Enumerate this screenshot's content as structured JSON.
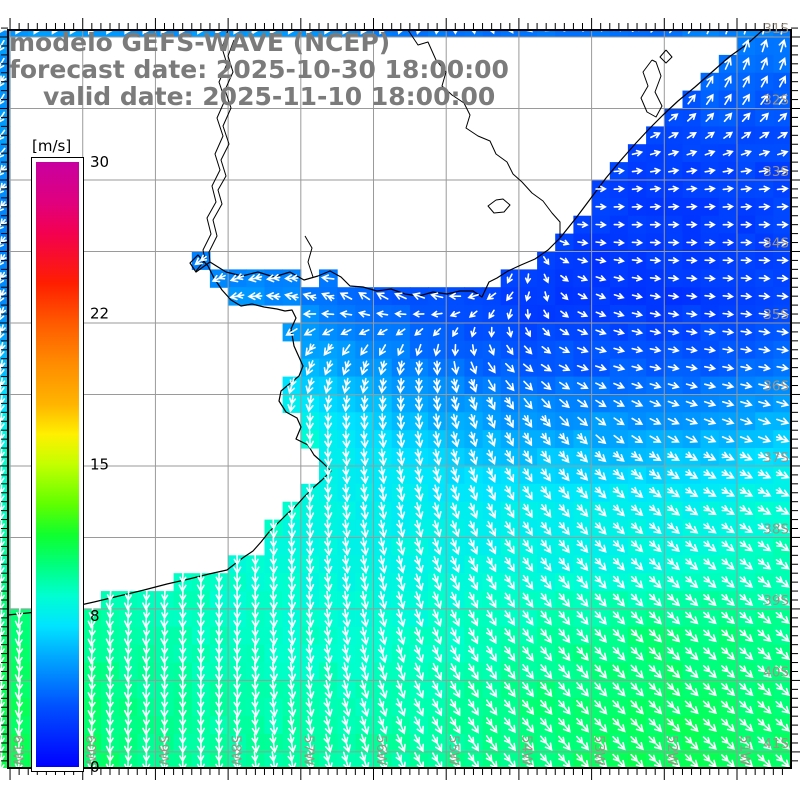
{
  "header": {
    "model_title": "modelo GEFS-WAVE (NCEP)",
    "forecast_date_line": "forecast date: 2025-10-30 18:00:00",
    "valid_date_line": "valid date: 2025-11-10 18:00:00"
  },
  "chart_data": {
    "type": "heatmap",
    "title": "modelo GEFS-WAVE (NCEP)",
    "subtitle_lines": [
      "forecast date: 2025-10-30 18:00:00",
      "valid date: 2025-11-10 18:00:00"
    ],
    "units": "m/s",
    "legend_position": "left",
    "grid": true,
    "colorbar": {
      "label": "[m/s]",
      "min": 0,
      "max": 30,
      "tick_labels": [
        "0",
        "8",
        "15",
        "22",
        "30"
      ],
      "tick_values": [
        0,
        7.5,
        15,
        22.5,
        30
      ],
      "stops": [
        [
          0,
          "#0000ff"
        ],
        [
          3,
          "#0050ff"
        ],
        [
          5.5,
          "#00aaff"
        ],
        [
          7,
          "#00e4ff"
        ],
        [
          8.5,
          "#00ffd0"
        ],
        [
          10,
          "#00ff7e"
        ],
        [
          11.5,
          "#0fff2f"
        ],
        [
          13,
          "#5eff00"
        ],
        [
          15,
          "#c3ff00"
        ],
        [
          16.5,
          "#fff000"
        ],
        [
          18,
          "#ffb400"
        ],
        [
          20,
          "#ff8c00"
        ],
        [
          22,
          "#ff5a00"
        ],
        [
          24,
          "#ff1e00"
        ],
        [
          26.5,
          "#f30050"
        ],
        [
          28,
          "#e0007e"
        ],
        [
          30,
          "#c800a0"
        ]
      ]
    },
    "layout": {
      "plot": [
        8,
        30,
        791,
        768
      ],
      "lon_left": -61.028,
      "lon_right": -50.257,
      "lat_top": -30.902,
      "lat_bottom": -41.225,
      "cell_deg": 0.25,
      "grid_color": "#9a9a9a",
      "label_color": "#9c9285",
      "title_color": "#7b7b7b",
      "arrow_color": "#ffffff",
      "coast_color": "#000000"
    },
    "lon_labels": [
      "61W",
      "60W",
      "59W",
      "58W",
      "57W",
      "56W",
      "55W",
      "54W",
      "53W",
      "52W",
      "51W"
    ],
    "lat_labels": [
      "31S",
      "32S",
      "33S",
      "34S",
      "35S",
      "36S",
      "37S",
      "38S",
      "39S",
      "40S",
      "41S"
    ],
    "field": {
      "comment": "wave/wind speed (m/s), arrow direction (deg, 0=E, 90=S) and relative arrow size on a 12x12 grid spanning the plot area",
      "wave_height_ms": [
        [
          5,
          5,
          5,
          5,
          5,
          4.5,
          4,
          4,
          4,
          4,
          4.5,
          4.2
        ],
        [
          5,
          5,
          5,
          5,
          4.5,
          4,
          3.5,
          3.2,
          3,
          3,
          3.5,
          3.2
        ],
        [
          5,
          5,
          5,
          4.5,
          4.2,
          4,
          3.5,
          3,
          2.6,
          2.4,
          2.4,
          2.6
        ],
        [
          4.5,
          4.5,
          4.5,
          4.2,
          4,
          3.8,
          3.2,
          2.6,
          2.2,
          2.1,
          2.2,
          2.4
        ],
        [
          4.5,
          4.5,
          4.8,
          5,
          4.5,
          3.6,
          2.8,
          2.2,
          2,
          2,
          2.2,
          2.6
        ],
        [
          6,
          6,
          6.5,
          7,
          6,
          5,
          4,
          3.4,
          3.2,
          3.2,
          3.4,
          3.8
        ],
        [
          8,
          8,
          8.5,
          10.2,
          8.5,
          7,
          6,
          5.5,
          5.3,
          5.3,
          5.5,
          6.2
        ],
        [
          9,
          9,
          9.3,
          9.6,
          8.3,
          7.6,
          7.4,
          7.4,
          7.4,
          7.5,
          7.8,
          8.3
        ],
        [
          9.5,
          9.2,
          8.8,
          8.5,
          8.2,
          8,
          8,
          8,
          8,
          8.2,
          8.6,
          9.2
        ],
        [
          10.5,
          9.8,
          9.2,
          8.8,
          8.6,
          8.5,
          8.6,
          9,
          9.6,
          10,
          10,
          9.8
        ],
        [
          10.6,
          10.2,
          9.6,
          9.2,
          9,
          9,
          9.2,
          9.8,
          10.2,
          10.5,
          10.4,
          10
        ],
        [
          10.8,
          10.6,
          9.8,
          9.5,
          9.4,
          9.4,
          9.5,
          9.9,
          10.4,
          10.8,
          10.8,
          10.4
        ]
      ],
      "arrow_dir_deg": [
        [
          120,
          120,
          120,
          120,
          120,
          120,
          100,
          60,
          0,
          -40,
          -70,
          -80
        ],
        [
          120,
          120,
          120,
          120,
          120,
          110,
          80,
          30,
          -10,
          -40,
          -60,
          -55
        ],
        [
          130,
          130,
          130,
          130,
          120,
          110,
          60,
          20,
          0,
          -10,
          -10,
          -8
        ],
        [
          130,
          130,
          132,
          135,
          138,
          150,
          160,
          90,
          5,
          0,
          0,
          0
        ],
        [
          115,
          120,
          135,
          165,
          195,
          215,
          195,
          130,
          30,
          10,
          5,
          5
        ],
        [
          100,
          100,
          100,
          105,
          115,
          110,
          90,
          45,
          20,
          12,
          10,
          10
        ],
        [
          95,
          95,
          95,
          95,
          90,
          85,
          80,
          65,
          45,
          30,
          22,
          20
        ],
        [
          95,
          95,
          95,
          92,
          88,
          82,
          75,
          62,
          48,
          38,
          30,
          26
        ],
        [
          95,
          95,
          93,
          90,
          87,
          80,
          70,
          58,
          50,
          44,
          40,
          36
        ],
        [
          95,
          95,
          93,
          90,
          85,
          78,
          68,
          57,
          50,
          46,
          42,
          40
        ],
        [
          95,
          95,
          92,
          88,
          82,
          73,
          63,
          54,
          49,
          46,
          43,
          41
        ],
        [
          95,
          94,
          91,
          87,
          80,
          71,
          61,
          53,
          49,
          46,
          44,
          42
        ]
      ],
      "arrow_mag": [
        [
          0.5,
          0.5,
          0.5,
          0.5,
          0.5,
          0.5,
          0.4,
          0.4,
          0.4,
          0.45,
          0.5,
          0.5
        ],
        [
          0.5,
          0.5,
          0.5,
          0.5,
          0.5,
          0.45,
          0.4,
          0.35,
          0.35,
          0.4,
          0.45,
          0.45
        ],
        [
          0.5,
          0.5,
          0.5,
          0.5,
          0.5,
          0.45,
          0.4,
          0.35,
          0.3,
          0.3,
          0.3,
          0.35
        ],
        [
          0.55,
          0.55,
          0.55,
          0.6,
          0.6,
          0.5,
          0.4,
          0.3,
          0.3,
          0.3,
          0.3,
          0.35
        ],
        [
          0.6,
          0.6,
          0.6,
          0.6,
          0.55,
          0.5,
          0.45,
          0.35,
          0.3,
          0.3,
          0.3,
          0.35
        ],
        [
          0.7,
          0.7,
          0.7,
          0.75,
          0.7,
          0.6,
          0.55,
          0.45,
          0.4,
          0.35,
          0.35,
          0.4
        ],
        [
          0.8,
          0.8,
          0.8,
          0.85,
          0.8,
          0.75,
          0.7,
          0.6,
          0.5,
          0.45,
          0.45,
          0.5
        ],
        [
          0.9,
          0.9,
          0.9,
          0.9,
          0.85,
          0.8,
          0.75,
          0.7,
          0.65,
          0.6,
          0.6,
          0.6
        ],
        [
          0.95,
          0.95,
          0.9,
          0.9,
          0.85,
          0.85,
          0.8,
          0.75,
          0.7,
          0.7,
          0.7,
          0.7
        ],
        [
          1,
          1,
          0.95,
          0.9,
          0.9,
          0.85,
          0.85,
          0.8,
          0.8,
          0.8,
          0.8,
          0.8
        ],
        [
          1,
          1,
          0.95,
          0.95,
          0.9,
          0.9,
          0.9,
          0.85,
          0.85,
          0.85,
          0.85,
          0.85
        ],
        [
          1,
          1,
          0.95,
          0.95,
          0.9,
          0.9,
          0.9,
          0.9,
          0.85,
          0.85,
          0.85,
          0.85
        ]
      ]
    },
    "geo": {
      "coastline": [
        [
          763,
          30
        ],
        [
          746,
          45
        ],
        [
          729,
          57
        ],
        [
          712,
          72
        ],
        [
          695,
          87
        ],
        [
          678,
          101
        ],
        [
          663,
          115
        ],
        [
          650,
          128
        ],
        [
          636,
          143
        ],
        [
          621,
          160
        ],
        [
          606,
          178
        ],
        [
          591,
          198
        ],
        [
          576,
          218
        ],
        [
          560,
          238
        ],
        [
          548,
          250
        ],
        [
          535,
          259
        ],
        [
          521,
          265
        ],
        [
          508,
          271
        ],
        [
          497,
          278
        ],
        [
          489,
          282
        ],
        [
          482,
          297
        ],
        [
          473,
          291
        ],
        [
          460,
          291
        ],
        [
          447,
          294
        ],
        [
          433,
          292
        ],
        [
          419,
          296
        ],
        [
          405,
          294
        ],
        [
          391,
          289
        ],
        [
          377,
          291
        ],
        [
          363,
          287
        ],
        [
          350,
          286
        ],
        [
          341,
          277
        ],
        [
          330,
          271
        ],
        [
          318,
          276
        ],
        [
          304,
          280
        ],
        [
          290,
          272
        ],
        [
          274,
          277
        ],
        [
          258,
          272
        ],
        [
          242,
          276
        ],
        [
          226,
          272
        ],
        [
          210,
          262
        ],
        [
          196,
          272
        ],
        [
          190,
          263
        ],
        [
          198,
          255
        ],
        [
          208,
          266
        ],
        [
          214,
          278
        ],
        [
          222,
          290
        ],
        [
          231,
          300
        ],
        [
          241,
          306
        ],
        [
          252,
          304
        ],
        [
          264,
          307
        ],
        [
          277,
          309
        ],
        [
          285,
          311
        ],
        [
          292,
          310
        ],
        [
          296,
          318
        ],
        [
          291,
          329
        ],
        [
          294,
          346
        ],
        [
          303,
          366
        ],
        [
          299,
          376
        ],
        [
          281,
          391
        ],
        [
          279,
          401
        ],
        [
          286,
          412
        ],
        [
          297,
          418
        ],
        [
          301,
          427
        ],
        [
          296,
          439
        ],
        [
          308,
          445
        ],
        [
          314,
          455
        ],
        [
          323,
          463
        ],
        [
          331,
          471
        ],
        [
          322,
          480
        ],
        [
          314,
          487
        ],
        [
          304,
          497
        ],
        [
          295,
          507
        ],
        [
          287,
          514
        ],
        [
          279,
          522
        ],
        [
          269,
          532
        ],
        [
          261,
          542
        ],
        [
          253,
          551
        ],
        [
          244,
          557
        ],
        [
          236,
          563
        ],
        [
          227,
          570
        ],
        [
          209,
          574
        ],
        [
          189,
          579
        ],
        [
          167,
          584
        ],
        [
          144,
          590
        ],
        [
          119,
          596
        ],
        [
          94,
          602
        ],
        [
          67,
          608
        ],
        [
          37,
          612
        ],
        [
          8,
          615
        ]
      ],
      "rivers": [
        [
          [
            228,
            30
          ],
          [
            222,
            48
          ],
          [
            227,
            64
          ],
          [
            219,
            82
          ],
          [
            225,
            100
          ],
          [
            217,
            118
          ],
          [
            223,
            136
          ],
          [
            215,
            154
          ],
          [
            220,
            170
          ],
          [
            212,
            186
          ],
          [
            216,
            202
          ],
          [
            207,
            218
          ],
          [
            211,
            234
          ],
          [
            203,
            250
          ],
          [
            205,
            260
          ],
          [
            196,
            271
          ]
        ],
        [
          [
            234,
            40
          ],
          [
            228,
            56
          ],
          [
            233,
            72
          ],
          [
            225,
            90
          ],
          [
            231,
            108
          ],
          [
            223,
            126
          ],
          [
            229,
            144
          ],
          [
            221,
            160
          ],
          [
            226,
            176
          ],
          [
            218,
            190
          ],
          [
            222,
            204
          ],
          [
            213,
            220
          ],
          [
            217,
            236
          ],
          [
            209,
            252
          ],
          [
            210,
            262
          ]
        ],
        [
          [
            408,
            30
          ],
          [
            418,
            45
          ],
          [
            428,
            42
          ],
          [
            436,
            60
          ],
          [
            446,
            72
          ],
          [
            442,
            86
          ],
          [
            452,
            95
          ],
          [
            464,
            103
          ],
          [
            470,
            115
          ],
          [
            466,
            128
          ],
          [
            478,
            136
          ],
          [
            490,
            141
          ],
          [
            496,
            154
          ],
          [
            507,
            162
          ],
          [
            513,
            174
          ],
          [
            522,
            182
          ],
          [
            532,
            193
          ],
          [
            543,
            201
          ],
          [
            552,
            213
          ],
          [
            560,
            222
          ],
          [
            560,
            238
          ]
        ],
        [
          [
            313,
            277
          ],
          [
            308,
            262
          ],
          [
            312,
            248
          ],
          [
            305,
            236
          ]
        ]
      ],
      "lakes": [
        [
          [
            652,
            60
          ],
          [
            643,
            72
          ],
          [
            648,
            86
          ],
          [
            641,
            98
          ],
          [
            647,
            112
          ],
          [
            656,
            117
          ],
          [
            662,
            106
          ],
          [
            655,
            92
          ],
          [
            661,
            76
          ],
          [
            656,
            62
          ],
          [
            652,
            60
          ]
        ],
        [
          [
            666,
            50
          ],
          [
            660,
            57
          ],
          [
            666,
            63
          ],
          [
            672,
            57
          ],
          [
            666,
            50
          ]
        ],
        [
          [
            496,
            200
          ],
          [
            488,
            206
          ],
          [
            494,
            213
          ],
          [
            504,
            212
          ],
          [
            510,
            205
          ],
          [
            503,
            199
          ],
          [
            496,
            200
          ]
        ]
      ]
    }
  }
}
